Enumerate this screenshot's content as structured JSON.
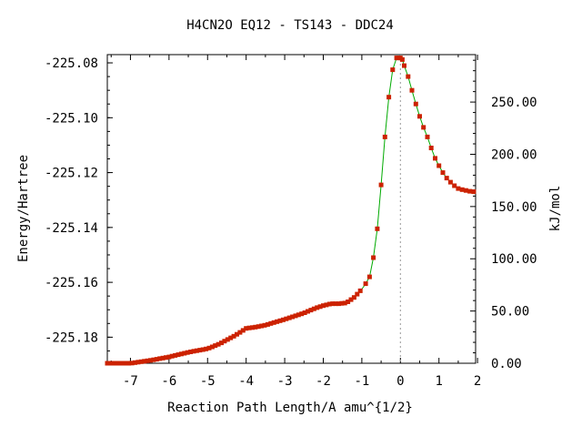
{
  "chart_data": {
    "type": "line",
    "title": "H4CN2O   EQ12 - TS143 - DDC24",
    "xlabel": "Reaction Path Length/A amu^{1/2}",
    "ylabel": "Energy/Hartree",
    "y2label": "kJ/mol",
    "xlim": [
      -7.6,
      1.95
    ],
    "ylim": [
      -225.1895,
      -225.077
    ],
    "y2lim": [
      0,
      295.4
    ],
    "x_ticks": [
      -7,
      -6,
      -5,
      -4,
      -3,
      -2,
      -1,
      0,
      1,
      2
    ],
    "x_tick_labels": [
      "-7",
      "-6",
      "-5",
      "-4",
      "-3",
      "-2",
      "-1",
      "0",
      "1",
      "2"
    ],
    "y_ticks": [
      -225.18,
      -225.16,
      -225.14,
      -225.12,
      -225.1,
      -225.08
    ],
    "y_tick_labels": [
      "-225.18",
      "-225.16",
      "-225.14",
      "-225.12",
      "-225.10",
      "-225.08"
    ],
    "y2_ticks": [
      0,
      50,
      100,
      150,
      200,
      250
    ],
    "y2_tick_labels": [
      "0.00",
      "50.00",
      "100.00",
      "150.00",
      "200.00",
      "250.00"
    ],
    "ts_x": 0,
    "grid": false,
    "line_color": "#00aa00",
    "marker_color": "#cc2200",
    "dash_color": "#999999",
    "curve": [
      [
        -7.6,
        -225.1895
      ],
      [
        -7.0,
        -225.1895
      ],
      [
        -6.5,
        -225.1885
      ],
      [
        -6.0,
        -225.1872
      ],
      [
        -5.5,
        -225.1855
      ],
      [
        -5.0,
        -225.1842
      ],
      [
        -4.7,
        -225.1825
      ],
      [
        -4.3,
        -225.1795
      ],
      [
        -4.0,
        -225.1768
      ],
      [
        -3.7,
        -225.1762
      ],
      [
        -3.5,
        -225.1756
      ],
      [
        -3.0,
        -225.1735
      ],
      [
        -2.5,
        -225.1712
      ],
      [
        -2.2,
        -225.1694
      ],
      [
        -2.0,
        -225.1685
      ],
      [
        -1.8,
        -225.1678
      ],
      [
        -1.6,
        -225.1678
      ],
      [
        -1.4,
        -225.1675
      ],
      [
        -1.2,
        -225.1655
      ],
      [
        -1.0,
        -225.1625
      ],
      [
        -0.9,
        -225.1605
      ],
      [
        -0.8,
        -225.158
      ],
      [
        -0.7,
        -225.151
      ],
      [
        -0.6,
        -225.1405
      ],
      [
        -0.5,
        -225.1245
      ],
      [
        -0.4,
        -225.107
      ],
      [
        -0.3,
        -225.0925
      ],
      [
        -0.2,
        -225.0825
      ],
      [
        -0.1,
        -225.0782
      ],
      [
        0.0,
        -225.0782
      ],
      [
        0.05,
        -225.0788
      ],
      [
        0.1,
        -225.081
      ],
      [
        0.2,
        -225.085
      ],
      [
        0.3,
        -225.09
      ],
      [
        0.4,
        -225.095
      ],
      [
        0.5,
        -225.0995
      ],
      [
        0.6,
        -225.1035
      ],
      [
        0.7,
        -225.107
      ],
      [
        0.8,
        -225.111
      ],
      [
        0.9,
        -225.1148
      ],
      [
        1.0,
        -225.1175
      ],
      [
        1.1,
        -225.12
      ],
      [
        1.2,
        -225.122
      ],
      [
        1.3,
        -225.1235
      ],
      [
        1.4,
        -225.1248
      ],
      [
        1.5,
        -225.1258
      ],
      [
        1.6,
        -225.1262
      ],
      [
        1.7,
        -225.1265
      ],
      [
        1.8,
        -225.1268
      ],
      [
        1.95,
        -225.127
      ]
    ]
  }
}
